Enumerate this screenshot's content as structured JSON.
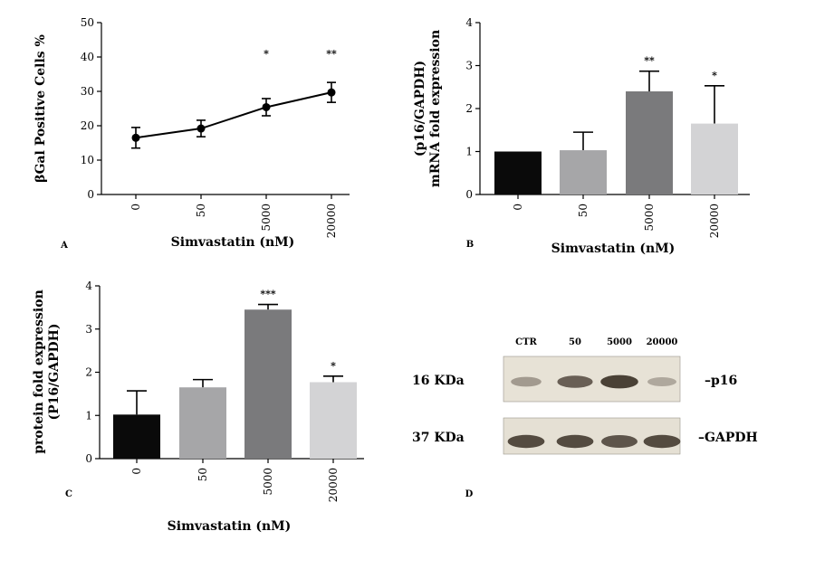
{
  "chart_data": [
    {
      "id": "A",
      "type": "line",
      "panel_label": "A",
      "ylabel": "βGal  Positive Cells %",
      "xlabel": "Simvastatin (nM)",
      "categories": [
        "0",
        "50",
        "5000",
        "20000"
      ],
      "values": [
        16.5,
        19.2,
        25.4,
        29.7
      ],
      "errors": [
        3.0,
        2.4,
        2.5,
        2.9
      ],
      "significance": [
        "",
        "",
        "*",
        "**"
      ],
      "yticks": [
        "0",
        "10",
        "20",
        "30",
        "40",
        "50"
      ],
      "ylim": [
        0,
        50
      ]
    },
    {
      "id": "B",
      "type": "bar",
      "panel_label": "B",
      "ylabel_lines": [
        "(p16/GAPDH)",
        "mRNA fold expression"
      ],
      "xlabel": "Simvastatin (nM)",
      "categories": [
        "0",
        "50",
        "5000",
        "20000"
      ],
      "values": [
        1.0,
        1.03,
        2.4,
        1.65
      ],
      "errors": [
        0.0,
        0.42,
        0.47,
        0.88
      ],
      "significance": [
        "",
        "",
        "**",
        "*"
      ],
      "bar_colors": [
        "#0a0a0a",
        "#a6a6a8",
        "#7a7a7c",
        "#d3d3d5"
      ],
      "yticks": [
        "0",
        "1",
        "2",
        "3",
        "4"
      ],
      "ylim": [
        0,
        4
      ]
    },
    {
      "id": "C",
      "type": "bar",
      "panel_label": "C",
      "ylabel_lines": [
        "protein fold expression",
        "(P16/GAPDH)"
      ],
      "xlabel": "Simvastatin (nM)",
      "categories": [
        "0",
        "50",
        "5000",
        "20000"
      ],
      "values": [
        1.02,
        1.65,
        3.45,
        1.77
      ],
      "errors": [
        0.55,
        0.18,
        0.12,
        0.14
      ],
      "significance": [
        "",
        "",
        "***",
        "*"
      ],
      "bar_colors": [
        "#0a0a0a",
        "#a6a6a8",
        "#7a7a7c",
        "#d3d3d5"
      ],
      "yticks": [
        "0",
        "1",
        "2",
        "3",
        "4"
      ],
      "ylim": [
        0,
        4
      ]
    }
  ],
  "blot": {
    "panel_label": "D",
    "lanes": [
      "CTR",
      "50",
      "5000",
      "20000"
    ],
    "rows": [
      {
        "mw": "16 KDa",
        "protein": "p16",
        "intensities": [
          0.35,
          0.7,
          0.85,
          0.25
        ]
      },
      {
        "mw": "37 KDa",
        "protein": "GAPDH",
        "intensities": [
          0.8,
          0.8,
          0.75,
          0.8
        ]
      }
    ]
  }
}
